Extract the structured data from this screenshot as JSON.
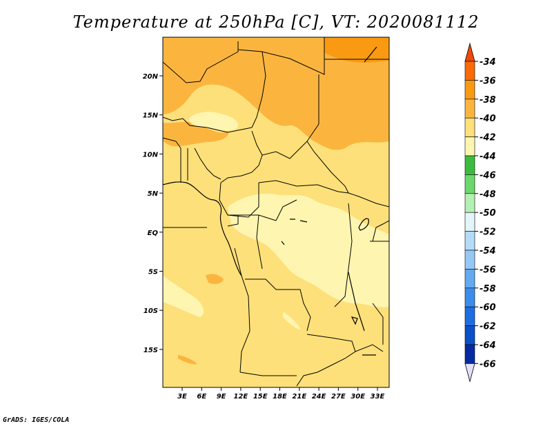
{
  "title": "Temperature at 250hPa [C], VT: 2020081112",
  "credit": "GrADS: IGES/COLA",
  "map": {
    "lat_labels": [
      "20N",
      "15N",
      "10N",
      "5N",
      "EQ",
      "5S",
      "10S",
      "15S"
    ],
    "lon_labels": [
      "3E",
      "6E",
      "9E",
      "12E",
      "15E",
      "18E",
      "21E",
      "24E",
      "27E",
      "30E",
      "33E"
    ]
  },
  "colorbar": {
    "levels": [
      "-34",
      "-36",
      "-38",
      "-40",
      "-42",
      "-44",
      "-46",
      "-48",
      "-50",
      "-52",
      "-54",
      "-56",
      "-58",
      "-60",
      "-62",
      "-64",
      "-66"
    ],
    "colors": {
      "above_-34": "#f04a0a",
      "-34_-36": "#fa6a06",
      "-36_-38": "#f99a12",
      "-38_-40": "#fbb53f",
      "-40_-42": "#fde07a",
      "-42_-44": "#fef5b0",
      "-44_-46": "#3cbc3c",
      "-46_-48": "#6cd86c",
      "-48_-50": "#b4f0b4",
      "-50_-52": "#e2f5f8",
      "-52_-54": "#b4dcf8",
      "-54_-56": "#96c8f5",
      "-56_-58": "#64aaf0",
      "-58_-60": "#3c8ceb",
      "-60_-62": "#1e6ee1",
      "-62_-64": "#0a50c8",
      "-64_-66": "#062aa0",
      "below_-66": "#08106e",
      "under": "#e1e1fa"
    }
  }
}
